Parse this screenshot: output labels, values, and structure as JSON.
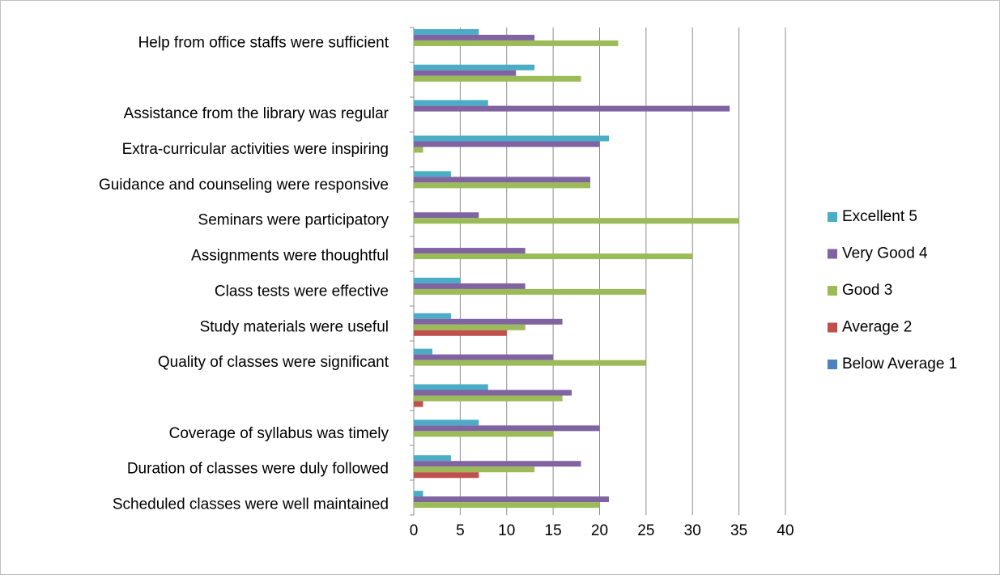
{
  "chart_data": {
    "type": "bar",
    "orientation": "horizontal",
    "categories": [
      "Scheduled classes were well maintained",
      "Duration of classes were duly followed",
      "Coverage of syllabus was timely",
      null,
      "Quality of classes were significant",
      "Study materials were useful",
      "Class tests were effective",
      "Assignments were thoughtful",
      "Seminars were participatory",
      "Guidance and counseling were responsive",
      "Extra-curricular activities were inspiring",
      "Assistance from the library was regular",
      null,
      "Help from office staffs were sufficient"
    ],
    "series": [
      {
        "name": "Excellent 5",
        "color": "#4bacc6",
        "values": [
          1,
          4,
          7,
          8,
          2,
          4,
          5,
          0,
          0,
          4,
          21,
          8,
          13,
          7
        ]
      },
      {
        "name": "Very Good 4",
        "color": "#8064a2",
        "values": [
          21,
          18,
          20,
          17,
          15,
          16,
          12,
          12,
          7,
          19,
          20,
          34,
          11,
          13
        ]
      },
      {
        "name": "Good 3",
        "color": "#9bbb59",
        "values": [
          20,
          13,
          15,
          16,
          25,
          12,
          25,
          30,
          35,
          19,
          1,
          0,
          18,
          22
        ]
      },
      {
        "name": "Average 2",
        "color": "#c0504d",
        "values": [
          0,
          7,
          0,
          1,
          0,
          10,
          0,
          0,
          0,
          0,
          0,
          0,
          0,
          0
        ]
      },
      {
        "name": "Below Average 1",
        "color": "#4f81bd",
        "values": [
          0,
          0,
          0,
          0,
          0,
          0,
          0,
          0,
          0,
          0,
          0,
          0,
          0,
          0
        ]
      }
    ],
    "xlim": [
      0,
      40
    ],
    "xticks": [
      0,
      5,
      10,
      15,
      20,
      25,
      30,
      35,
      40
    ],
    "grid": true,
    "legend": "right"
  }
}
